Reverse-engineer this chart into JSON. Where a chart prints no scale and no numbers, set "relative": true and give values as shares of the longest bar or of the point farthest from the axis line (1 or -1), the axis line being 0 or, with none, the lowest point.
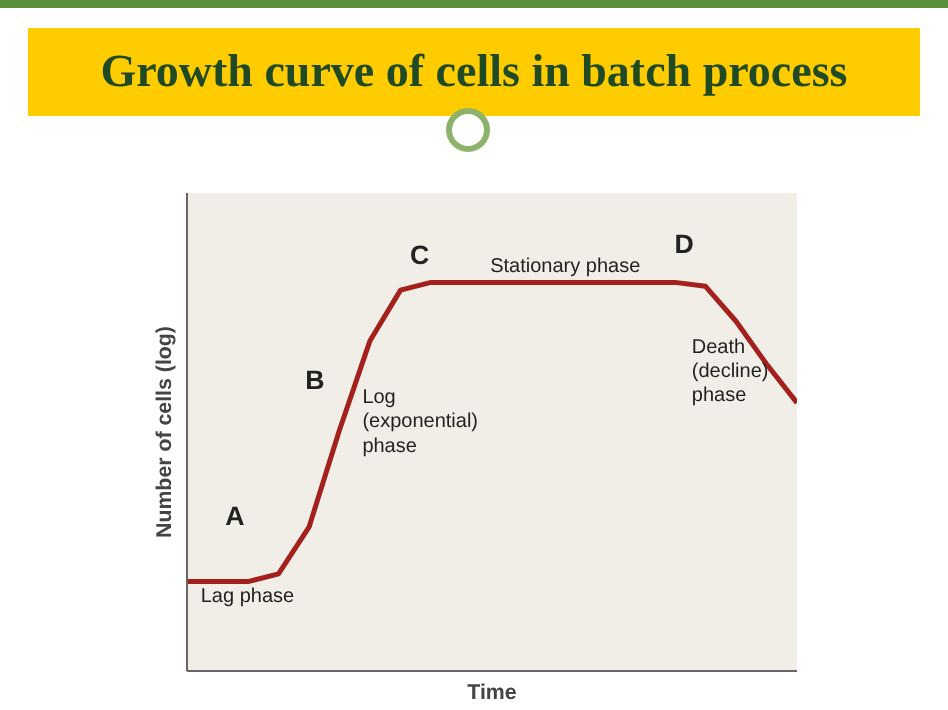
{
  "chart_data": {
    "type": "line",
    "title": "Growth curve of cells in batch process",
    "xlabel": "Time",
    "ylabel": "Number of cells (log)",
    "categories": [
      null,
      null,
      null,
      null,
      null,
      null,
      null,
      null,
      null,
      null,
      null,
      null,
      null,
      null,
      null,
      null,
      null,
      null,
      null,
      null,
      null
    ],
    "values": [
      0.23,
      0.23,
      0.23,
      0.25,
      0.37,
      0.62,
      0.85,
      0.98,
      1,
      1,
      1,
      1,
      1,
      1,
      1,
      1,
      1,
      0.99,
      0.9,
      0.79,
      0.69
    ],
    "color": "#a3201c",
    "relative": true,
    "annotations": [
      "A",
      "B",
      "C",
      "D",
      "Lag phase",
      "Log\n(exponential)\nphase",
      "Stationary phase",
      "Death\n(decline)\nphase"
    ]
  }
}
